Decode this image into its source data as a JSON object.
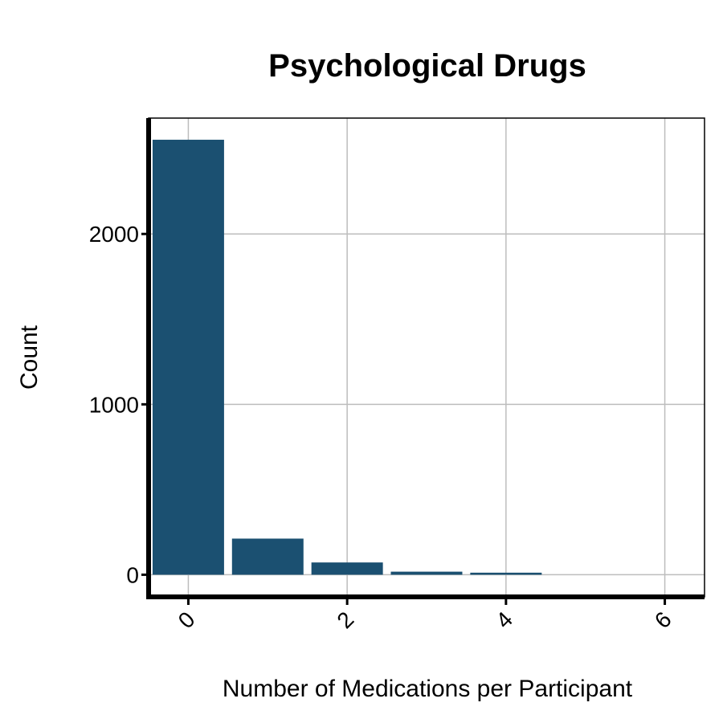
{
  "chart_data": {
    "type": "bar",
    "title": "Psychological Drugs",
    "xlabel": "Number of Medications per Participant",
    "ylabel": "Count",
    "x": [
      0,
      1,
      2,
      3,
      4,
      5,
      6
    ],
    "values": [
      2553,
      212,
      72,
      18,
      12,
      0,
      0
    ],
    "x_ticks": [
      0,
      2,
      4,
      6
    ],
    "y_ticks": [
      0,
      1000,
      2000
    ],
    "xlim": [
      -0.5,
      6.5
    ],
    "ylim": [
      -130,
      2680
    ],
    "grid": true,
    "bar_color": "#1b5071",
    "x_tick_rotation": 45
  }
}
